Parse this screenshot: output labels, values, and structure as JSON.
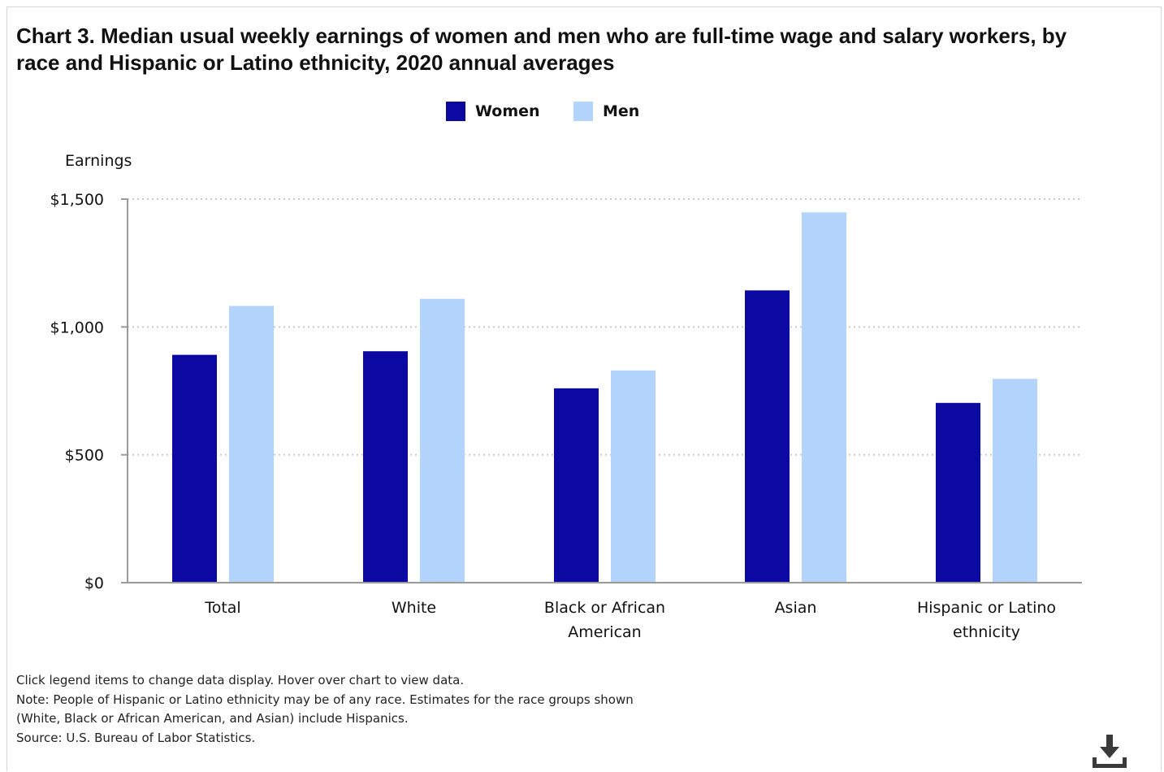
{
  "title": "Chart 3. Median usual weekly earnings of women and men who are full-time wage and salary workers, by race and Hispanic or Latino ethnicity, 2020 annual averages",
  "legend": {
    "women": "Women",
    "men": "Men"
  },
  "colors": {
    "women": "#0c08a2",
    "men": "#b3d4fd",
    "axis": "#9a9a9a",
    "grid": "#c9c9c9"
  },
  "chart_data": {
    "type": "bar",
    "categories": [
      [
        "Total"
      ],
      [
        "White"
      ],
      [
        "Black or African",
        "American"
      ],
      [
        "Asian"
      ],
      [
        "Hispanic or Latino",
        "ethnicity"
      ]
    ],
    "series": [
      {
        "name": "Women",
        "values": [
          891,
          905,
          760,
          1143,
          703
        ]
      },
      {
        "name": "Men",
        "values": [
          1082,
          1110,
          830,
          1448,
          797
        ]
      }
    ],
    "ylabel": "Earnings",
    "ylim": [
      0,
      1500
    ],
    "yticks": [
      0,
      500,
      1000,
      1500
    ],
    "ytick_labels": [
      "$0",
      "$500",
      "$1,000",
      "$1,500"
    ],
    "grid": true,
    "legend_position": "top-center"
  },
  "notes": [
    "Click legend items to change data display. Hover over chart to view data.",
    "Note: People of Hispanic or Latino ethnicity may be of any race. Estimates for the race groups shown",
    "(White, Black or African American, and Asian) include Hispanics.",
    "Source: U.S. Bureau of Labor Statistics."
  ],
  "icons": {
    "download": "download-icon"
  }
}
